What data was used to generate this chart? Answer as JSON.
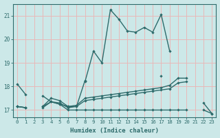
{
  "x_values": [
    0,
    1,
    2,
    3,
    4,
    5,
    6,
    7,
    8,
    9,
    10,
    11,
    12,
    13,
    14,
    15,
    16,
    17,
    18,
    19,
    20,
    21,
    22,
    23
  ],
  "line_main": [
    18.1,
    17.65,
    null,
    null,
    null,
    null,
    null,
    null,
    18.2,
    19.5,
    19.0,
    21.25,
    20.85,
    20.35,
    20.3,
    20.5,
    20.3,
    21.05,
    19.5,
    null,
    null,
    null,
    17.3,
    16.85
  ],
  "line_flat": [
    17.15,
    17.1,
    null,
    17.1,
    17.35,
    17.25,
    17.0,
    17.0,
    17.0,
    17.0,
    17.0,
    17.0,
    17.0,
    17.0,
    17.0,
    17.0,
    17.0,
    17.0,
    17.0,
    17.0,
    17.0,
    null,
    17.0,
    16.85
  ],
  "line_reg1": [
    17.15,
    17.1,
    null,
    17.15,
    17.35,
    17.3,
    17.1,
    17.15,
    17.4,
    17.45,
    17.5,
    17.55,
    17.6,
    17.65,
    17.7,
    17.75,
    17.8,
    17.85,
    17.9,
    18.15,
    18.2,
    null,
    null,
    null
  ],
  "line_reg2": [
    17.15,
    17.1,
    null,
    17.15,
    17.5,
    17.4,
    17.15,
    17.2,
    17.5,
    17.55,
    17.6,
    17.65,
    17.7,
    17.75,
    17.8,
    17.85,
    17.9,
    17.95,
    18.05,
    18.35,
    18.35,
    null,
    null,
    null
  ],
  "line_extra": [
    null,
    null,
    null,
    17.6,
    17.35,
    17.25,
    17.15,
    17.15,
    18.25,
    null,
    null,
    null,
    null,
    null,
    null,
    null,
    null,
    18.45,
    null,
    null,
    null,
    null,
    null,
    null
  ],
  "line_color": "#2e6b6b",
  "bg_color": "#cce8e8",
  "grid_color": "#e8b8b8",
  "xlabel": "Humidex (Indice chaleur)",
  "ylim": [
    16.7,
    21.5
  ],
  "xlim": [
    -0.5,
    23.5
  ],
  "yticks": [
    17,
    18,
    19,
    20,
    21
  ],
  "xticks": [
    0,
    1,
    2,
    3,
    4,
    5,
    6,
    7,
    8,
    9,
    10,
    11,
    12,
    13,
    14,
    15,
    16,
    17,
    18,
    19,
    20,
    21,
    22,
    23
  ]
}
